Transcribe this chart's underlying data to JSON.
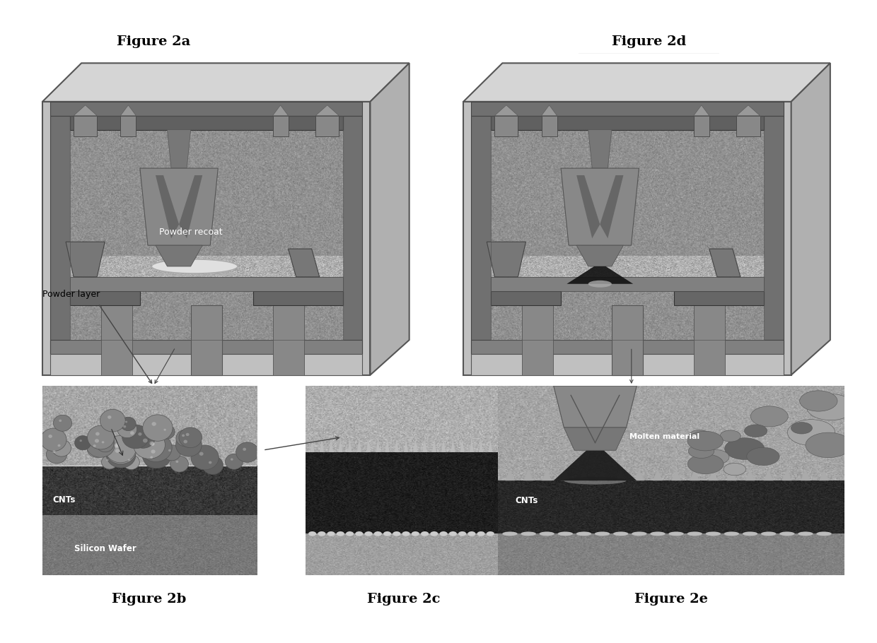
{
  "background_color": "#ffffff",
  "fig_width": 12.4,
  "fig_height": 9.1,
  "title_2a": "Figure 2a",
  "title_2b": "Figure 2b",
  "title_2c": "Figure 2c",
  "title_2d": "Figure 2d",
  "title_2e": "Figure 2e",
  "label_powder_recoat": "Powder recoat",
  "label_powder_layer": "Powder layer",
  "label_cnts_b": "CNTs",
  "label_silicon_wafer": "Silicon Wafer",
  "label_molten_material": "Molten material",
  "label_cnts_e": "CNTs",
  "outer_box_color": "#888888",
  "outer_box_top_color": "#aaaaaa",
  "outer_box_right_color": "#999999",
  "inner_bg_color": "#909090",
  "frame_color": "#555555",
  "frame_dark": "#333333",
  "ceiling_rail_color": "#666666",
  "head_body_color": "#777777",
  "platform_color": "#888888",
  "bottom_section_color": "#aaaaaa",
  "title_fontsize": 14,
  "label_fontsize": 9
}
